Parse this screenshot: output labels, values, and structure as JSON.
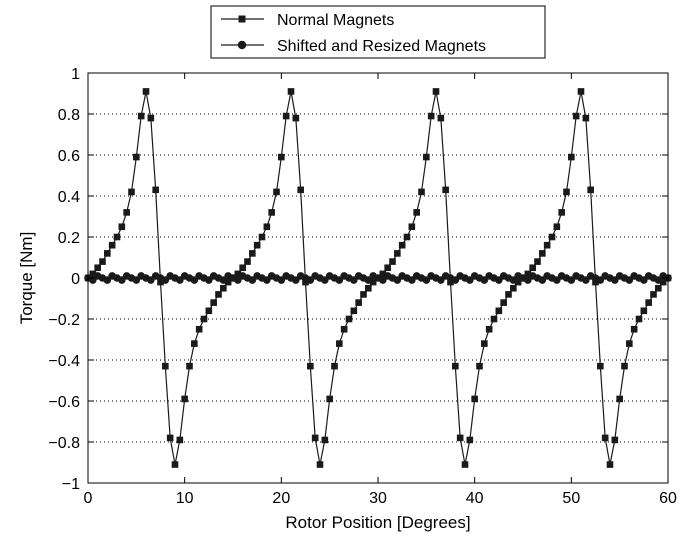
{
  "chart_data": {
    "type": "line",
    "xlabel": "Rotor Position [Degrees]",
    "ylabel": "Torque [Nm]",
    "xlim": [
      0,
      60
    ],
    "ylim": [
      -1,
      1
    ],
    "xticks": [
      "0",
      "10",
      "20",
      "30",
      "40",
      "50",
      "60"
    ],
    "yticks": [
      "1",
      "0.8",
      "0.6",
      "0.4",
      "0.2",
      "0",
      "−0.2",
      "−0.4",
      "−0.6",
      "−0.8",
      "−1"
    ],
    "grid": "horizontal-dotted",
    "legend": "top-center",
    "series": [
      {
        "name": "Normal Magnets",
        "marker": "square",
        "color": "#1a1a1a",
        "x": [
          0,
          0.5,
          1,
          1.5,
          2,
          2.5,
          3,
          3.5,
          4,
          4.5,
          5,
          5.5,
          6,
          6.5,
          7,
          7.5,
          8,
          8.5,
          9,
          9.5,
          10,
          10.5,
          11,
          11.5,
          12,
          12.5,
          13,
          13.5,
          14,
          14.5,
          15,
          15.5,
          16,
          16.5,
          17,
          17.5,
          18,
          18.5,
          19,
          19.5,
          20,
          20.5,
          21,
          21.5,
          22,
          22.5,
          23,
          23.5,
          24,
          24.5,
          25,
          25.5,
          26,
          26.5,
          27,
          27.5,
          28,
          28.5,
          29,
          29.5,
          30,
          30.5,
          31,
          31.5,
          32,
          32.5,
          33,
          33.5,
          34,
          34.5,
          35,
          35.5,
          36,
          36.5,
          37,
          37.5,
          38,
          38.5,
          39,
          39.5,
          40,
          40.5,
          41,
          41.5,
          42,
          42.5,
          43,
          43.5,
          44,
          44.5,
          45,
          45.5,
          46,
          46.5,
          47,
          47.5,
          48,
          48.5,
          49,
          49.5,
          50,
          50.5,
          51,
          51.5,
          52,
          52.5,
          53,
          53.5,
          54,
          54.5,
          55,
          55.5,
          56,
          56.5,
          57,
          57.5,
          58,
          58.5,
          59,
          59.5,
          60
        ],
        "y": [
          0,
          0.02,
          0.05,
          0.08,
          0.12,
          0.16,
          0.2,
          0.25,
          0.32,
          0.42,
          0.59,
          0.79,
          0.91,
          0.78,
          0.43,
          -0.02,
          -0.43,
          -0.78,
          -0.91,
          -0.79,
          -0.59,
          -0.43,
          -0.32,
          -0.25,
          -0.2,
          -0.16,
          -0.12,
          -0.08,
          -0.05,
          -0.02,
          0,
          0.02,
          0.05,
          0.08,
          0.12,
          0.16,
          0.2,
          0.25,
          0.32,
          0.42,
          0.59,
          0.79,
          0.91,
          0.78,
          0.43,
          -0.02,
          -0.43,
          -0.78,
          -0.91,
          -0.79,
          -0.59,
          -0.43,
          -0.32,
          -0.25,
          -0.2,
          -0.16,
          -0.12,
          -0.08,
          -0.05,
          -0.02,
          0,
          0.02,
          0.05,
          0.08,
          0.12,
          0.16,
          0.2,
          0.25,
          0.32,
          0.42,
          0.59,
          0.79,
          0.91,
          0.78,
          0.43,
          -0.02,
          -0.43,
          -0.78,
          -0.91,
          -0.79,
          -0.59,
          -0.43,
          -0.32,
          -0.25,
          -0.2,
          -0.16,
          -0.12,
          -0.08,
          -0.05,
          -0.02,
          0,
          0.02,
          0.05,
          0.08,
          0.12,
          0.16,
          0.2,
          0.25,
          0.32,
          0.42,
          0.59,
          0.79,
          0.91,
          0.78,
          0.43,
          -0.02,
          -0.43,
          -0.78,
          -0.91,
          -0.79,
          -0.59,
          -0.43,
          -0.32,
          -0.25,
          -0.2,
          -0.16,
          -0.12,
          -0.08,
          -0.05,
          -0.02,
          0
        ]
      },
      {
        "name": "Shifted and Resized Magnets",
        "marker": "circle",
        "color": "#1a1a1a",
        "x": [
          0,
          0.5,
          1,
          1.5,
          2,
          2.5,
          3,
          3.5,
          4,
          4.5,
          5,
          5.5,
          6,
          6.5,
          7,
          7.5,
          8,
          8.5,
          9,
          9.5,
          10,
          10.5,
          11,
          11.5,
          12,
          12.5,
          13,
          13.5,
          14,
          14.5,
          15,
          15.5,
          16,
          16.5,
          17,
          17.5,
          18,
          18.5,
          19,
          19.5,
          20,
          20.5,
          21,
          21.5,
          22,
          22.5,
          23,
          23.5,
          24,
          24.5,
          25,
          25.5,
          26,
          26.5,
          27,
          27.5,
          28,
          28.5,
          29,
          29.5,
          30,
          30.5,
          31,
          31.5,
          32,
          32.5,
          33,
          33.5,
          34,
          34.5,
          35,
          35.5,
          36,
          36.5,
          37,
          37.5,
          38,
          38.5,
          39,
          39.5,
          40,
          40.5,
          41,
          41.5,
          42,
          42.5,
          43,
          43.5,
          44,
          44.5,
          45,
          45.5,
          46,
          46.5,
          47,
          47.5,
          48,
          48.5,
          49,
          49.5,
          50,
          50.5,
          51,
          51.5,
          52,
          52.5,
          53,
          53.5,
          54,
          54.5,
          55,
          55.5,
          56,
          56.5,
          57,
          57.5,
          58,
          58.5,
          59,
          59.5,
          60
        ],
        "y": [
          0,
          -0.01,
          0.01,
          0,
          -0.01,
          0.01,
          0,
          -0.01,
          0.01,
          0,
          -0.01,
          0.01,
          0,
          -0.01,
          0.01,
          0,
          -0.01,
          0.01,
          0,
          -0.01,
          0.01,
          0,
          -0.01,
          0.01,
          0,
          -0.01,
          0.01,
          0,
          -0.01,
          0.01,
          0,
          -0.01,
          0.01,
          0,
          -0.01,
          0.01,
          0,
          -0.01,
          0.01,
          0,
          -0.01,
          0.01,
          0,
          -0.01,
          0.01,
          0,
          -0.01,
          0.01,
          0,
          -0.01,
          0.01,
          0,
          -0.01,
          0.01,
          0,
          -0.01,
          0.01,
          0,
          -0.01,
          0.01,
          0,
          -0.01,
          0.01,
          0,
          -0.01,
          0.01,
          0,
          -0.01,
          0.01,
          0,
          -0.01,
          0.01,
          0,
          -0.01,
          0.01,
          0,
          -0.01,
          0.01,
          0,
          -0.01,
          0.01,
          0,
          -0.01,
          0.01,
          0,
          -0.01,
          0.01,
          0,
          -0.01,
          0.01,
          0,
          -0.01,
          0.01,
          0,
          -0.01,
          0.01,
          0,
          -0.01,
          0.01,
          0,
          -0.01,
          0.01,
          0,
          -0.01,
          0.01,
          0,
          -0.01,
          0.01,
          0,
          -0.01,
          0.01,
          0,
          -0.01,
          0.01,
          0,
          -0.01,
          0.01,
          0,
          -0.01,
          0.01,
          0
        ]
      }
    ]
  }
}
